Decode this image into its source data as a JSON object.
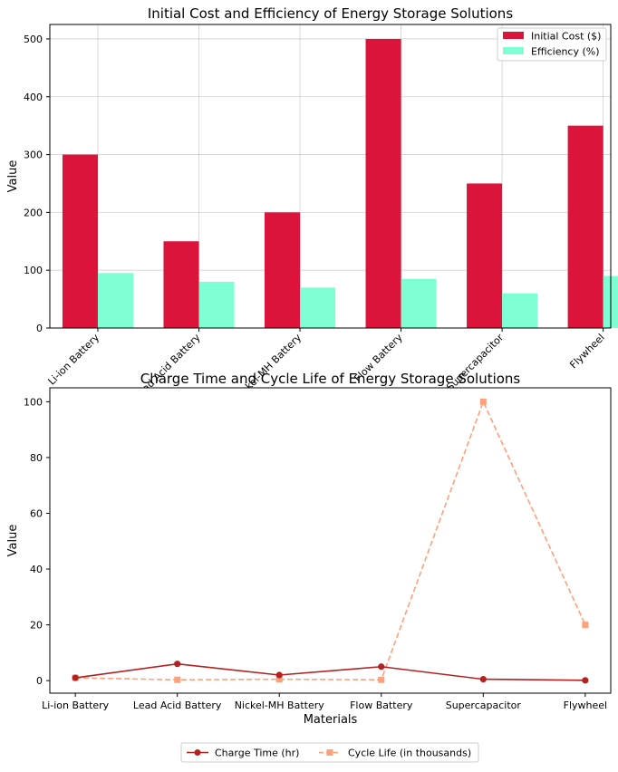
{
  "chart_data": [
    {
      "type": "bar",
      "title": "Initial Cost and Efficiency of Energy Storage Solutions",
      "xlabel": "",
      "ylabel": "Value",
      "categories": [
        "Li-ion Battery",
        "Lead Acid Battery",
        "Nickel-MH Battery",
        "Flow Battery",
        "Supercapacitor",
        "Flywheel"
      ],
      "series": [
        {
          "name": "Initial Cost ($)",
          "values": [
            300,
            150,
            200,
            500,
            250,
            350
          ],
          "color": "#dc143c"
        },
        {
          "name": "Efficiency (%)",
          "values": [
            95,
            80,
            70,
            85,
            60,
            90
          ],
          "color": "#7fffd4"
        }
      ],
      "ylim": [
        0,
        525
      ],
      "yticks": [
        0,
        100,
        200,
        300,
        400,
        500
      ],
      "grid": true,
      "legend": "top-right",
      "xtick_rotation": 45
    },
    {
      "type": "line",
      "title": "Charge Time and Cycle Life of Energy Storage Solutions",
      "xlabel": "Materials",
      "ylabel": "Value",
      "categories": [
        "Li-ion Battery",
        "Lead Acid Battery",
        "Nickel-MH Battery",
        "Flow Battery",
        "Supercapacitor",
        "Flywheel"
      ],
      "series": [
        {
          "name": "Charge Time (hr)",
          "values": [
            1,
            6,
            2,
            5,
            0.5,
            0.1
          ],
          "color": "#b22222",
          "marker": "circle",
          "linestyle": "solid"
        },
        {
          "name": "Cycle Life (in thousands)",
          "values": [
            1,
            0.3,
            0.5,
            0.3,
            100,
            20
          ],
          "color": "#ffa07a",
          "marker": "square",
          "linestyle": "dashed"
        }
      ],
      "ylim": [
        -4.5,
        105
      ],
      "yticks": [
        0,
        20,
        40,
        60,
        80,
        100
      ],
      "grid": false,
      "legend": "bottom-center"
    }
  ]
}
